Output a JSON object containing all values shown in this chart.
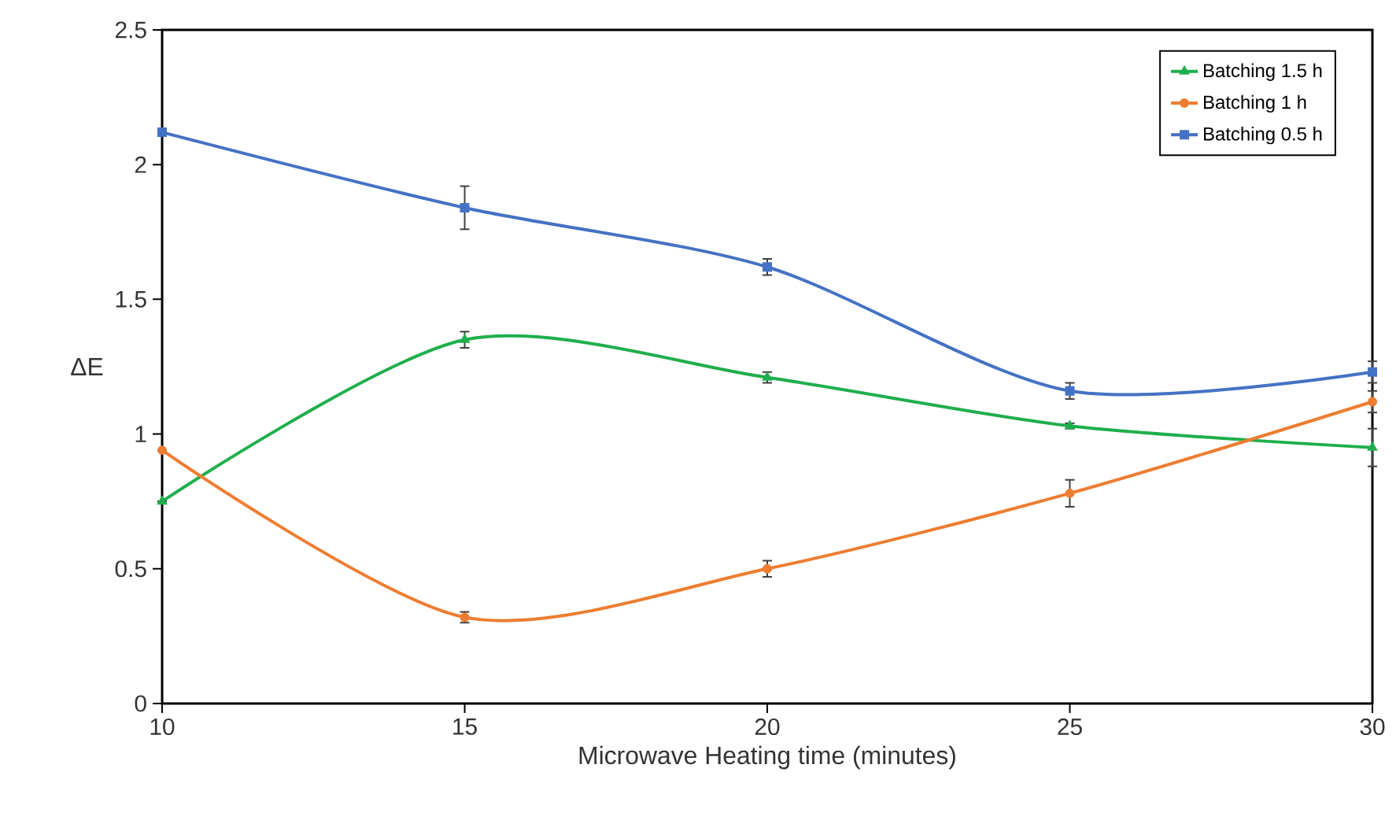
{
  "chart_data": {
    "type": "line",
    "xlabel": "Microwave Heating time (minutes)",
    "ylabel": "ΔE",
    "x": [
      10,
      15,
      20,
      25,
      30
    ],
    "series": [
      {
        "name": "Batching 1.5 h",
        "color": "#1fae4c",
        "marker": "triangle",
        "values": [
          0.75,
          1.35,
          1.21,
          1.03,
          0.95
        ],
        "errors": [
          null,
          0.03,
          0.02,
          0.01,
          0.07
        ]
      },
      {
        "name": "Batching 1 h",
        "color": "#ed7d31",
        "marker": "circle",
        "values": [
          0.94,
          0.32,
          0.5,
          0.78,
          1.12
        ],
        "errors": [
          null,
          0.02,
          0.03,
          0.05,
          0.04
        ]
      },
      {
        "name": "Batching 0.5 h",
        "color": "#4472c4",
        "marker": "square",
        "values": [
          2.12,
          1.84,
          1.62,
          1.16,
          1.23
        ],
        "errors": [
          null,
          0.08,
          0.03,
          0.03,
          0.04
        ]
      }
    ],
    "xlim": [
      10,
      30
    ],
    "xticks": [
      10,
      15,
      20,
      25,
      30
    ],
    "ylim": [
      0,
      2.5
    ],
    "yticks": [
      0,
      0.5,
      1,
      1.5,
      2,
      2.5
    ],
    "legend": "top right",
    "grid": false,
    "line_style": "solid"
  }
}
